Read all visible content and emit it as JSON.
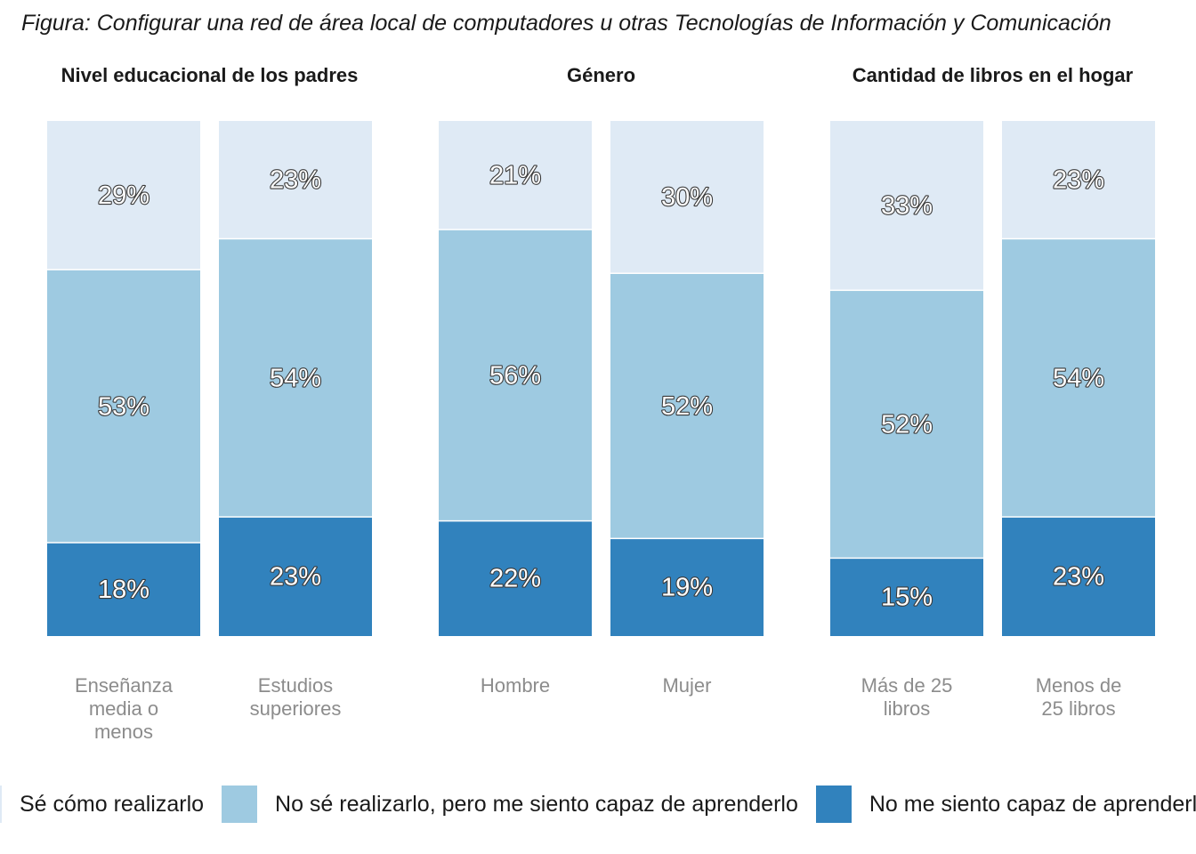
{
  "title": "Figura: Configurar una red de área local de computadores u otras Tecnologías de Información y Comunicación",
  "chart_data": {
    "type": "bar",
    "stacked": true,
    "series": [
      {
        "name": "Sé cómo realizarlo",
        "color": "#dfeaf5"
      },
      {
        "name": "No sé realizarlo, pero me siento capaz de aprenderlo",
        "color": "#9ecae1"
      },
      {
        "name": "No me siento capaz de aprenderlo",
        "color": "#3182bd"
      }
    ],
    "facets": [
      {
        "title": "Nivel educacional de los padres",
        "bars": [
          {
            "category": [
              "Enseñanza",
              "media o",
              "menos"
            ],
            "values": [
              29,
              53,
              18
            ],
            "labels": [
              "29%",
              "53%",
              "18%"
            ]
          },
          {
            "category": [
              "Estudios",
              "superiores"
            ],
            "values": [
              23,
              54,
              23
            ],
            "labels": [
              "23%",
              "54%",
              "23%"
            ]
          }
        ]
      },
      {
        "title": "Género",
        "bars": [
          {
            "category": [
              "Hombre"
            ],
            "values": [
              21,
              56,
              22
            ],
            "labels": [
              "21%",
              "56%",
              "22%"
            ]
          },
          {
            "category": [
              "Mujer"
            ],
            "values": [
              30,
              52,
              19
            ],
            "labels": [
              "30%",
              "52%",
              "19%"
            ]
          }
        ]
      },
      {
        "title": "Cantidad de libros en el hogar",
        "bars": [
          {
            "category": [
              "Más de 25",
              "libros"
            ],
            "values": [
              33,
              52,
              15
            ],
            "labels": [
              "33%",
              "52%",
              "15%"
            ]
          },
          {
            "category": [
              "Menos de",
              "25 libros"
            ],
            "values": [
              23,
              54,
              23
            ],
            "labels": [
              "23%",
              "54%",
              "23%"
            ]
          }
        ]
      }
    ],
    "legend_position": "bottom"
  }
}
